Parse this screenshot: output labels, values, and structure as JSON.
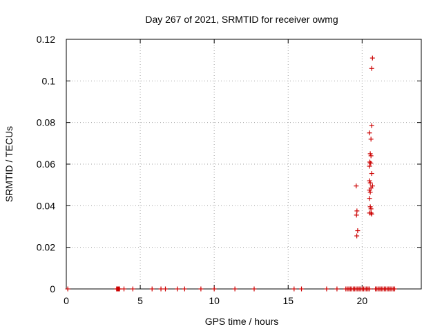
{
  "chart_data": {
    "type": "scatter",
    "title": "Day 267 of 2021, SRMTID for receiver owmg",
    "xlabel": "GPS time / hours",
    "ylabel": "SRMTID / TECUs",
    "xlim": [
      0,
      24
    ],
    "ylim": [
      0,
      0.12
    ],
    "x_ticks": [
      0,
      5,
      10,
      15,
      20
    ],
    "x_tick_labels": [
      "0",
      "5",
      "10",
      "15",
      "20"
    ],
    "y_ticks": [
      0,
      0.02,
      0.04,
      0.06,
      0.08,
      0.1,
      0.12
    ],
    "y_tick_labels": [
      "0",
      "0.02",
      "0.04",
      "0.06",
      "0.08",
      "0.1",
      "0.12"
    ],
    "grid": true,
    "series": [
      {
        "name": "SRMTID",
        "color": "#cc0000",
        "marker": "plus",
        "points": [
          [
            0.1,
            0
          ],
          [
            3.4,
            0
          ],
          [
            3.45,
            0
          ],
          [
            3.5,
            0
          ],
          [
            3.55,
            0
          ],
          [
            3.6,
            0
          ],
          [
            3.9,
            0
          ],
          [
            4.5,
            0
          ],
          [
            5.8,
            0
          ],
          [
            6.4,
            0
          ],
          [
            6.7,
            0
          ],
          [
            7.5,
            0
          ],
          [
            8.0,
            0
          ],
          [
            9.1,
            0
          ],
          [
            10.0,
            0
          ],
          [
            11.4,
            0
          ],
          [
            12.7,
            0
          ],
          [
            15.4,
            0
          ],
          [
            15.9,
            0
          ],
          [
            17.6,
            0
          ],
          [
            18.3,
            0
          ],
          [
            18.9,
            0
          ],
          [
            19.0,
            0
          ],
          [
            19.1,
            0
          ],
          [
            19.2,
            0
          ],
          [
            19.3,
            0
          ],
          [
            19.4,
            0
          ],
          [
            19.5,
            0
          ],
          [
            19.6,
            0
          ],
          [
            19.7,
            0
          ],
          [
            19.8,
            0
          ],
          [
            19.9,
            0
          ],
          [
            20.0,
            0
          ],
          [
            20.1,
            0
          ],
          [
            20.2,
            0
          ],
          [
            20.3,
            0
          ],
          [
            20.4,
            0
          ],
          [
            20.5,
            0
          ],
          [
            20.9,
            0
          ],
          [
            21.0,
            0
          ],
          [
            21.1,
            0
          ],
          [
            21.2,
            0
          ],
          [
            21.3,
            0
          ],
          [
            21.4,
            0
          ],
          [
            21.5,
            0
          ],
          [
            21.6,
            0
          ],
          [
            21.7,
            0
          ],
          [
            21.8,
            0
          ],
          [
            21.9,
            0
          ],
          [
            22.0,
            0
          ],
          [
            22.1,
            0
          ],
          [
            22.2,
            0
          ],
          [
            19.6,
            0.0495
          ],
          [
            19.65,
            0.0375
          ],
          [
            19.62,
            0.0355
          ],
          [
            19.7,
            0.028
          ],
          [
            19.64,
            0.0255
          ],
          [
            20.5,
            0.075
          ],
          [
            20.6,
            0.072
          ],
          [
            20.55,
            0.065
          ],
          [
            20.6,
            0.064
          ],
          [
            20.52,
            0.061
          ],
          [
            20.58,
            0.0605
          ],
          [
            20.5,
            0.059
          ],
          [
            20.65,
            0.0555
          ],
          [
            20.5,
            0.052
          ],
          [
            20.55,
            0.051
          ],
          [
            20.7,
            0.0495
          ],
          [
            20.6,
            0.0485
          ],
          [
            20.5,
            0.0475
          ],
          [
            20.55,
            0.0465
          ],
          [
            20.5,
            0.0435
          ],
          [
            20.55,
            0.0395
          ],
          [
            20.6,
            0.0385
          ],
          [
            20.5,
            0.0365
          ],
          [
            20.6,
            0.0365
          ],
          [
            20.65,
            0.036
          ],
          [
            20.65,
            0.0785
          ],
          [
            20.7,
            0.111
          ],
          [
            20.65,
            0.106
          ]
        ]
      }
    ]
  }
}
